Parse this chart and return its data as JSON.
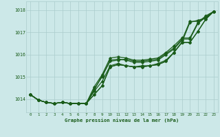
{
  "title": "Graphe pression niveau de la mer (hPa)",
  "bg_color": "#cce8e8",
  "grid_color": "#aacccc",
  "line_color": "#1a5c1a",
  "xlim": [
    -0.5,
    23.5
  ],
  "ylim": [
    1013.4,
    1018.4
  ],
  "yticks": [
    1014,
    1015,
    1016,
    1017,
    1018
  ],
  "xticks": [
    0,
    1,
    2,
    3,
    4,
    5,
    6,
    7,
    8,
    9,
    10,
    11,
    12,
    13,
    14,
    15,
    16,
    17,
    18,
    19,
    20,
    21,
    22,
    23
  ],
  "series": [
    [
      1014.2,
      1013.95,
      1013.85,
      1013.8,
      1013.85,
      1013.8,
      1013.8,
      1013.8,
      1014.2,
      1014.6,
      1015.45,
      1015.55,
      1015.5,
      1015.45,
      1015.45,
      1015.5,
      1015.55,
      1015.7,
      1016.1,
      1016.55,
      1016.55,
      1017.05,
      1017.6,
      1017.95
    ],
    [
      1014.2,
      1013.95,
      1013.85,
      1013.8,
      1013.85,
      1013.8,
      1013.8,
      1013.8,
      1014.35,
      1014.8,
      1015.5,
      1015.6,
      1015.5,
      1015.45,
      1015.5,
      1015.5,
      1015.6,
      1015.75,
      1016.1,
      1016.55,
      1016.55,
      1017.05,
      1017.6,
      1017.95
    ],
    [
      1014.2,
      1013.95,
      1013.85,
      1013.8,
      1013.85,
      1013.8,
      1013.8,
      1013.8,
      1014.4,
      1015.05,
      1015.7,
      1015.75,
      1015.8,
      1015.7,
      1015.7,
      1015.75,
      1015.8,
      1016.05,
      1016.3,
      1016.7,
      1016.7,
      1017.4,
      1017.7,
      1017.95
    ],
    [
      1014.2,
      1013.95,
      1013.85,
      1013.8,
      1013.85,
      1013.8,
      1013.8,
      1013.8,
      1014.55,
      1015.1,
      1015.85,
      1015.9,
      1015.85,
      1015.75,
      1015.75,
      1015.8,
      1015.85,
      1016.1,
      1016.4,
      1016.75,
      1016.75,
      1017.45,
      1017.75,
      1017.95
    ],
    [
      1014.2,
      1013.95,
      1013.85,
      1013.8,
      1013.85,
      1013.8,
      1013.8,
      1013.8,
      1014.45,
      1015.0,
      1015.75,
      1015.8,
      1015.75,
      1015.65,
      1015.65,
      1015.7,
      1015.75,
      1016.0,
      1016.25,
      1016.65,
      1017.5,
      1017.5,
      1017.65,
      1017.95
    ]
  ],
  "series_outlier": [
    1014.2,
    1013.95,
    1013.85,
    1013.8,
    1013.85,
    1013.8,
    1013.8,
    1013.8,
    1014.2,
    1014.6,
    1015.45,
    1015.55,
    1015.5,
    1015.45,
    1015.45,
    1015.5,
    1015.55,
    1015.7,
    1016.1,
    1016.55,
    1017.45,
    1017.55,
    1017.65,
    1017.95
  ]
}
